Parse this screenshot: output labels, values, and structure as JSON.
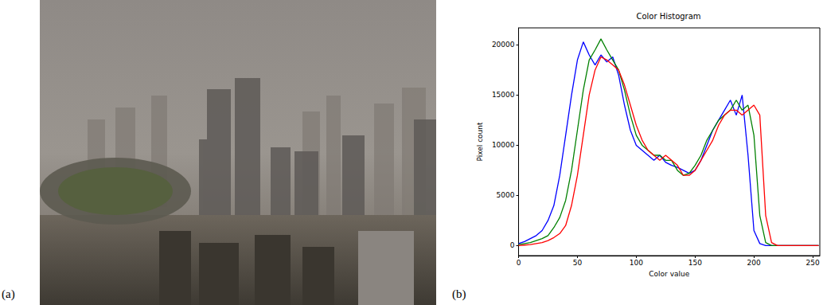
{
  "figure": {
    "panel_labels": [
      "(a)",
      "(b)"
    ]
  },
  "chart_data": {
    "type": "line",
    "title": "Color Histogram",
    "x_label": "Color value",
    "y_label": "Pixel count",
    "x": [
      0,
      5,
      10,
      15,
      20,
      25,
      30,
      35,
      40,
      45,
      50,
      55,
      60,
      65,
      70,
      75,
      80,
      85,
      90,
      95,
      100,
      105,
      110,
      115,
      120,
      125,
      130,
      135,
      140,
      145,
      150,
      155,
      160,
      165,
      170,
      175,
      180,
      185,
      190,
      195,
      200,
      205,
      210,
      215,
      220,
      225,
      230,
      235,
      240,
      245,
      250,
      255
    ],
    "series": [
      {
        "color": "#0000ff",
        "values": [
          200,
          400,
          700,
          1000,
          1500,
          2500,
          4000,
          7000,
          11000,
          15000,
          18500,
          20300,
          19000,
          18000,
          19000,
          18300,
          18800,
          17000,
          14000,
          11500,
          10000,
          9500,
          9000,
          8500,
          9000,
          8300,
          8000,
          7800,
          7500,
          7200,
          7500,
          8500,
          10000,
          11500,
          12500,
          13500,
          14500,
          13000,
          15000,
          9000,
          1500,
          200,
          0,
          0,
          0,
          0,
          0,
          0,
          0,
          0,
          0,
          0
        ]
      },
      {
        "color": "#008000",
        "values": [
          100,
          200,
          300,
          500,
          700,
          1000,
          1800,
          2800,
          4500,
          7500,
          11500,
          15500,
          18500,
          19500,
          20600,
          19500,
          18500,
          17500,
          15500,
          13000,
          11000,
          10000,
          9500,
          9000,
          9000,
          8500,
          8500,
          7500,
          7000,
          7200,
          8000,
          9000,
          10500,
          11500,
          12500,
          13000,
          13500,
          14500,
          13500,
          14000,
          11000,
          3000,
          300,
          0,
          0,
          0,
          0,
          0,
          0,
          0,
          0,
          0
        ]
      },
      {
        "color": "#ff0000",
        "values": [
          0,
          50,
          100,
          200,
          300,
          500,
          800,
          1200,
          2000,
          4000,
          7000,
          11000,
          15000,
          17500,
          18800,
          18500,
          18000,
          17500,
          16000,
          14000,
          12000,
          10500,
          9500,
          9000,
          8500,
          9000,
          8500,
          8000,
          7000,
          7000,
          7500,
          8500,
          9500,
          10500,
          12000,
          13000,
          13500,
          13500,
          13000,
          13500,
          14000,
          13000,
          3000,
          300,
          0,
          0,
          0,
          0,
          0,
          0,
          0,
          0
        ]
      }
    ],
    "xlim": [
      0,
      256
    ],
    "xticks": [
      0,
      50,
      100,
      150,
      200,
      250
    ],
    "ylim": [
      -1000,
      21700
    ],
    "yticks": [
      0,
      5000,
      10000,
      15000,
      20000
    ],
    "grid": false
  }
}
